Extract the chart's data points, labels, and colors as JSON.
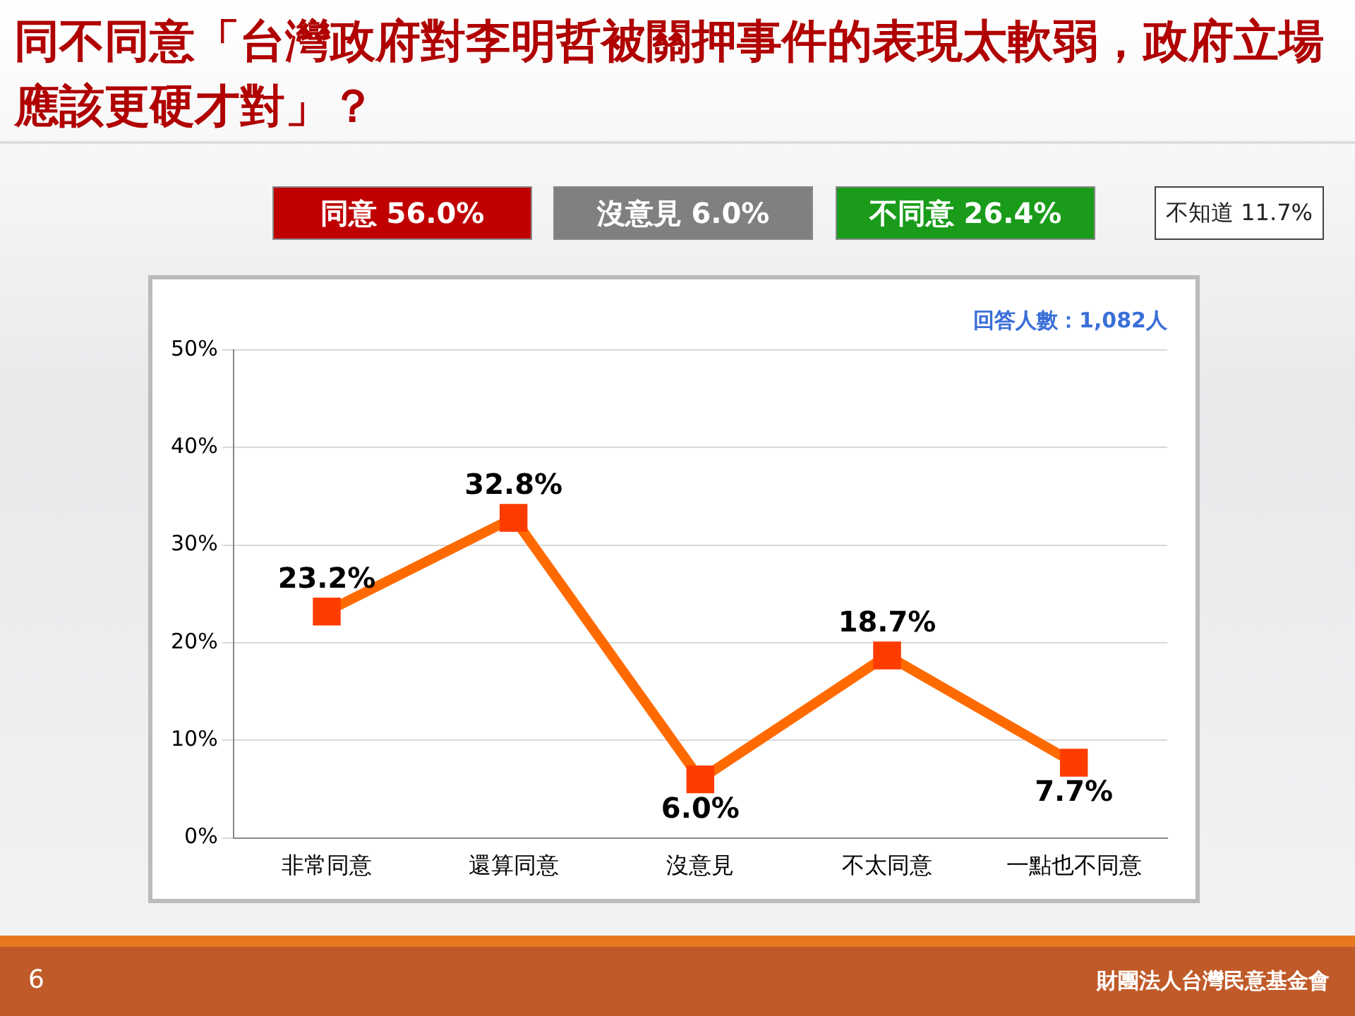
{
  "chart_data": {
    "type": "line",
    "title": "同不同意「台灣政府對李明哲被關押事件的表現太軟弱，政府立場應該更硬才對」？",
    "categories": [
      "非常同意",
      "還算同意",
      "沒意見",
      "不太同意",
      "一點也不同意"
    ],
    "series": [
      {
        "color": "#ff6a00",
        "values": [
          23.2,
          32.8,
          6.0,
          18.7,
          7.7
        ]
      }
    ],
    "ylim": [
      0,
      50
    ],
    "yticks": [
      {
        "value": 0,
        "label": "0%"
      },
      {
        "value": 10,
        "label": "10%"
      },
      {
        "value": 20,
        "label": "20%"
      },
      {
        "value": 30,
        "label": "30%"
      },
      {
        "value": 40,
        "label": "40%"
      },
      {
        "value": 50,
        "label": "50%"
      }
    ],
    "grid": "y",
    "marker": "square",
    "line_style": "solid",
    "legend": false,
    "value_labels": [
      "23.2%",
      "32.8%",
      "6.0%",
      "18.7%",
      "7.7%"
    ],
    "annotations": [
      "同意 56.0%",
      "沒意見 6.0%",
      "不同意 26.4%",
      "不知道 11.7%",
      "回答人數：1,082人",
      "6",
      "財團法人台灣民意基金會"
    ]
  }
}
